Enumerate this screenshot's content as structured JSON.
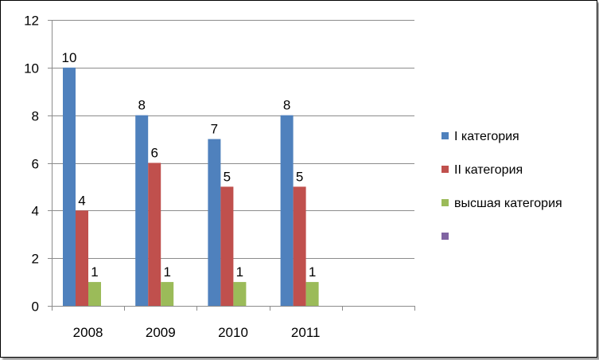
{
  "chart_data": {
    "type": "bar",
    "title": "",
    "xlabel": "",
    "ylabel": "",
    "categories": [
      "2008",
      "2009",
      "2010",
      "2011",
      ""
    ],
    "series": [
      {
        "name": "I категория",
        "color": "#4f81bd",
        "values": [
          10,
          8,
          7,
          8,
          null
        ]
      },
      {
        "name": "II категория",
        "color": "#c0504d",
        "values": [
          4,
          6,
          5,
          5,
          null
        ]
      },
      {
        "name": "высшая категория",
        "color": "#9bbb59",
        "values": [
          1,
          1,
          1,
          1,
          null
        ]
      },
      {
        "name": "",
        "color": "#8064a2",
        "values": [
          null,
          null,
          null,
          null,
          null
        ]
      }
    ],
    "ylim": [
      0,
      12
    ],
    "yticks": [
      0,
      2,
      4,
      6,
      8,
      10,
      12
    ],
    "grid": true,
    "legend": "right"
  }
}
